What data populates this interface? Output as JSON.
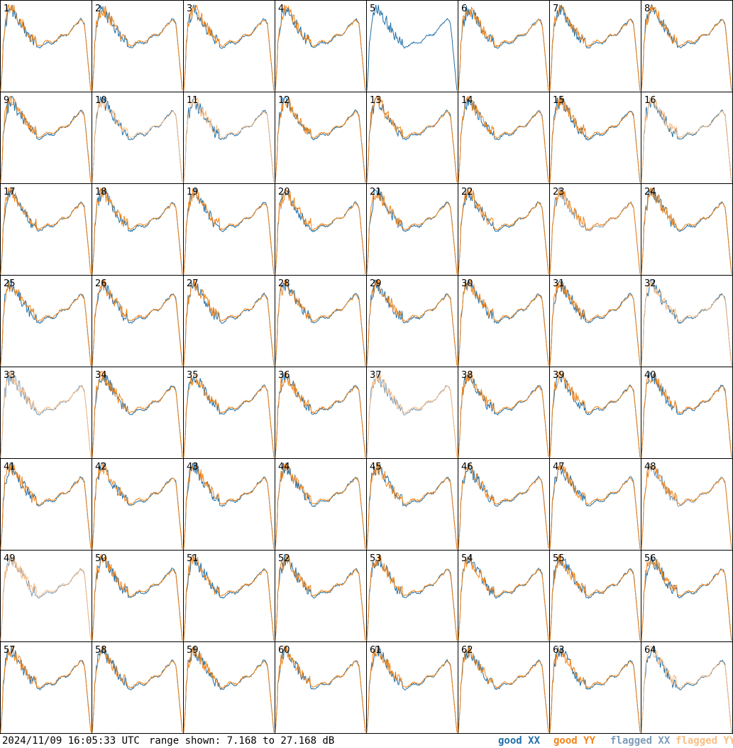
{
  "footer": {
    "timestamp": "2024/11/09 16:05:33 UTC",
    "range_text": "range shown: 7.168 to 27.168 dB"
  },
  "legend": [
    {
      "key": "good_xx",
      "label": "good XX",
      "color": "#1f6fa8"
    },
    {
      "key": "good_yy",
      "label": "good YY",
      "color": "#f28418"
    },
    {
      "key": "flagged_xx",
      "label": "flagged XX",
      "color": "#7d9cb8"
    },
    {
      "key": "flagged_yy",
      "label": "flagged YY",
      "color": "#f9be87"
    }
  ],
  "chart_data": {
    "type": "line",
    "ylim": [
      7.168,
      27.168
    ],
    "yunit": "dB",
    "grid_columns": 8,
    "panel_labels": [
      "1",
      "2",
      "3",
      "4",
      "5",
      "6",
      "7",
      "8",
      "9",
      "10",
      "11",
      "12",
      "13",
      "14",
      "15",
      "16",
      "17",
      "18",
      "19",
      "20",
      "21",
      "22",
      "23",
      "24",
      "25",
      "26",
      "27",
      "28",
      "29",
      "30",
      "31",
      "32",
      "33",
      "34",
      "35",
      "36",
      "37",
      "38",
      "39",
      "40",
      "41",
      "42",
      "43",
      "44",
      "45",
      "46",
      "47",
      "48",
      "49",
      "50",
      "51",
      "52",
      "53",
      "54",
      "55",
      "56",
      "57",
      "58",
      "59",
      "60",
      "61",
      "62",
      "63",
      "64"
    ],
    "xx_status": [
      "good",
      "good",
      "good",
      "good",
      "good",
      "good",
      "good",
      "good",
      "good",
      "good",
      "good",
      "good",
      "good",
      "good",
      "good",
      "good",
      "good",
      "good",
      "good",
      "good",
      "good",
      "good",
      "flagged",
      "good",
      "good",
      "good",
      "good",
      "good",
      "good",
      "good",
      "good",
      "good",
      "flagged",
      "good",
      "good",
      "good",
      "flagged",
      "good",
      "good",
      "good",
      "good",
      "good",
      "good",
      "good",
      "good",
      "good",
      "good",
      "flagged",
      "flagged",
      "good",
      "good",
      "good",
      "good",
      "good",
      "good",
      "good",
      "good",
      "good",
      "good",
      "good",
      "good",
      "good",
      "good",
      "good"
    ],
    "yy_status": [
      "good",
      "good",
      "good",
      "good",
      "none",
      "good",
      "good",
      "good",
      "good",
      "flagged",
      "flagged",
      "good",
      "good",
      "good",
      "good",
      "flagged",
      "good",
      "good",
      "good",
      "good",
      "good",
      "good",
      "good",
      "good",
      "good",
      "good",
      "good",
      "good",
      "good",
      "good",
      "good",
      "flagged",
      "flagged",
      "good",
      "good",
      "good",
      "flagged",
      "good",
      "good",
      "good",
      "good",
      "good",
      "good",
      "good",
      "good",
      "good",
      "good",
      "good",
      "flagged",
      "good",
      "good",
      "good",
      "good",
      "good",
      "good",
      "good",
      "good",
      "good",
      "good",
      "good",
      "good",
      "good",
      "good",
      "flagged"
    ]
  }
}
